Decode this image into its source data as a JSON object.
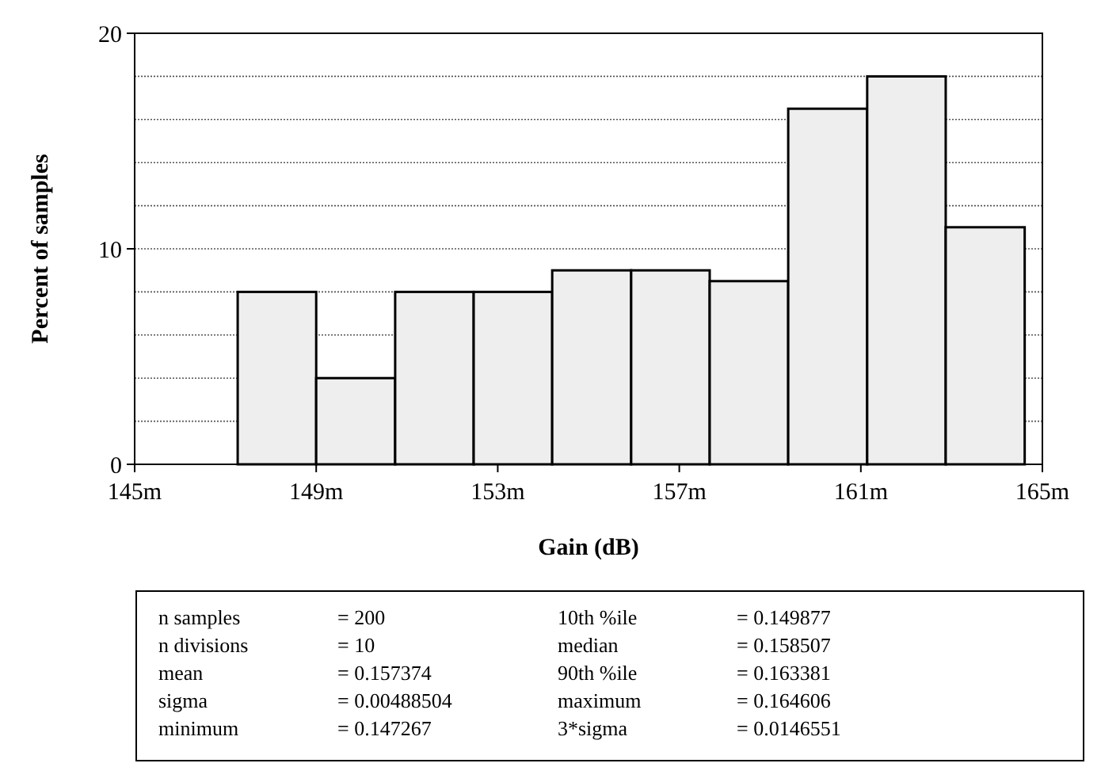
{
  "chart_data": {
    "type": "histogram",
    "xlabel": "Gain (dB)",
    "ylabel": "Percent of samples",
    "bins": [
      147.27,
      149.0,
      150.74,
      152.47,
      154.2,
      155.94,
      157.67,
      159.4,
      161.14,
      162.87,
      164.61
    ],
    "values": [
      8,
      4,
      8,
      8,
      9,
      9,
      8.5,
      16.5,
      18,
      11
    ],
    "color": "#eeeeee",
    "xlim": [
      145,
      165
    ],
    "xticks": [
      {
        "value": 145,
        "label": "145m"
      },
      {
        "value": 149,
        "label": "149m"
      },
      {
        "value": 153,
        "label": "153m"
      },
      {
        "value": 157,
        "label": "157m"
      },
      {
        "value": 161,
        "label": "161m"
      },
      {
        "value": 165,
        "label": "165m"
      }
    ],
    "ylim": [
      0,
      20
    ],
    "yticks": [
      0,
      {
        "value": 2,
        "label": null
      },
      {
        "value": 4,
        "label": null
      },
      {
        "value": 6,
        "label": null
      },
      {
        "value": 8,
        "label": null
      },
      10,
      {
        "value": 12,
        "label": null
      },
      {
        "value": 14,
        "label": null
      },
      {
        "value": 16,
        "label": null
      },
      {
        "value": 18,
        "label": null
      },
      20
    ],
    "grid": "y",
    "annotations": [
      "n samples = 200",
      "n divisions = 10",
      "mean = 0.157374",
      "sigma = 0.00488504",
      "minimum = 0.147267",
      "10th %ile = 0.149877",
      "median = 0.158507",
      "90th %ile = 0.163381",
      "maximum = 0.164606",
      "3*sigma = 0.0146551"
    ]
  }
}
